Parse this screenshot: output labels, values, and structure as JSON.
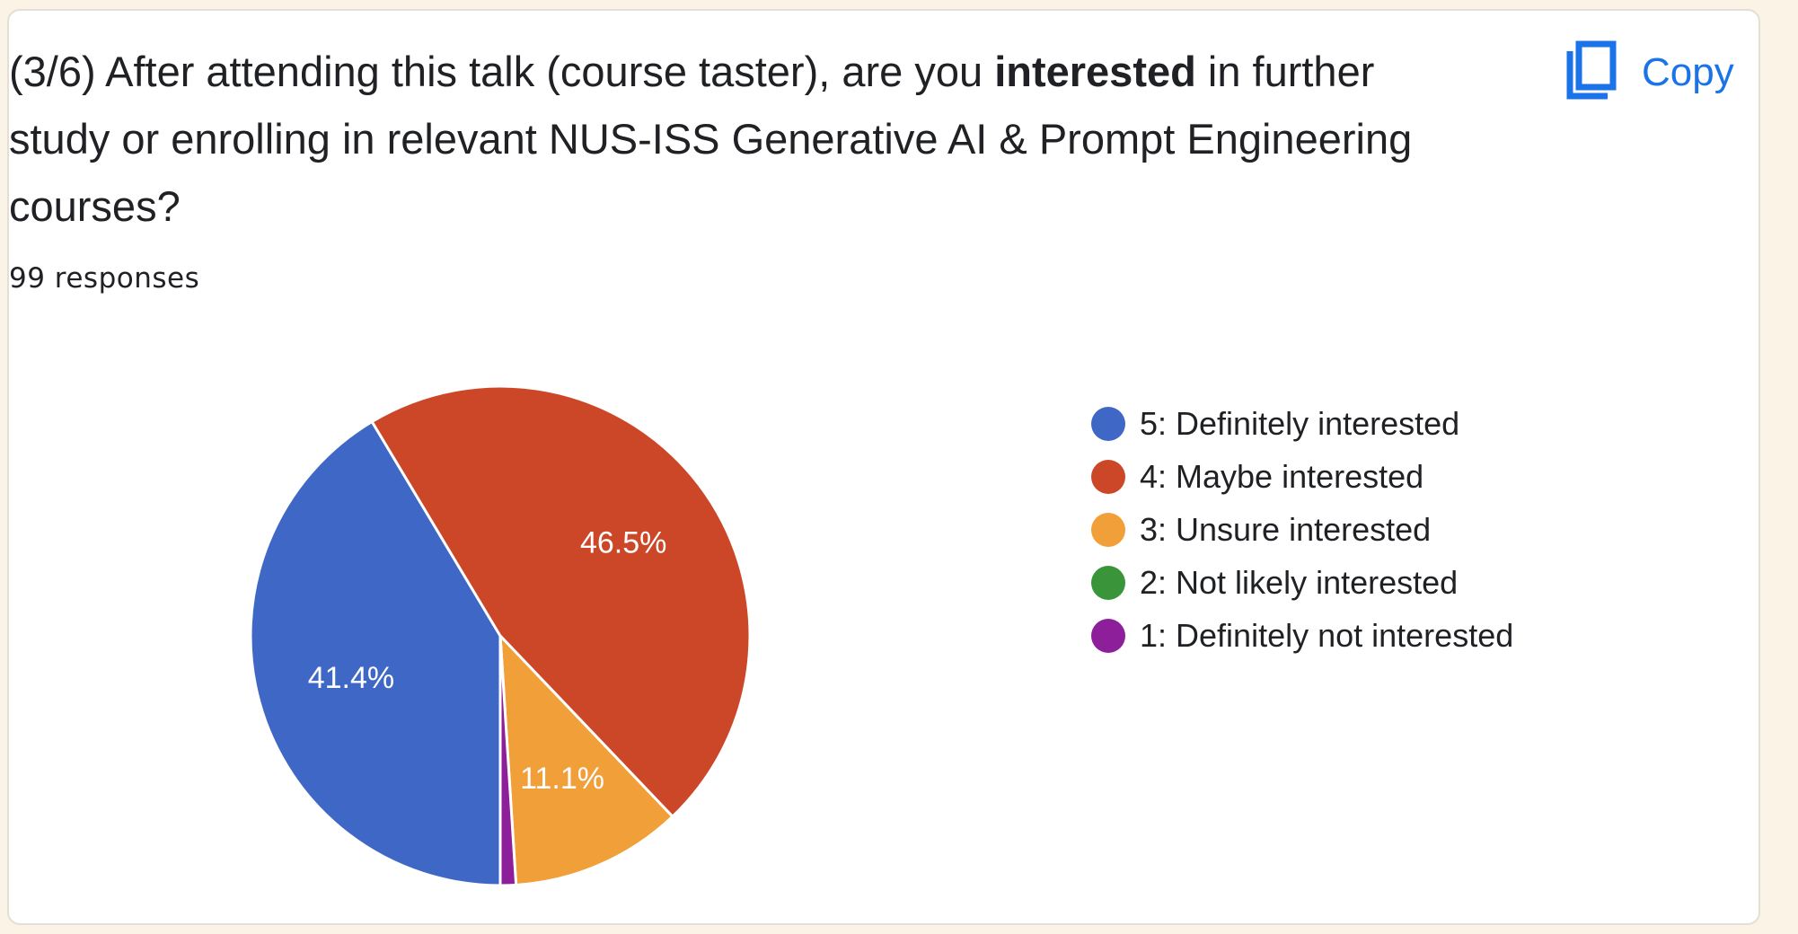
{
  "question": {
    "prefix": "(3/6) After attending this talk (course taster), are you ",
    "emphasis": "interested",
    "suffix": " in further study or enrolling in relevant NUS-ISS Generative AI & Prompt Engineering courses?"
  },
  "responses_text": "99 responses",
  "copy_button": {
    "label": "Copy",
    "icon": "copy-icon",
    "color": "#1a73e8"
  },
  "chart_data": {
    "type": "pie",
    "total_responses": 99,
    "start_angle_deg": 90,
    "slices": [
      {
        "label": "5: Definitely interested",
        "value": 41,
        "percent_label": "41.4%",
        "color": "#3f67c6"
      },
      {
        "label": "4: Maybe interested",
        "value": 46,
        "percent_label": "46.5%",
        "color": "#cc4628"
      },
      {
        "label": "3: Unsure interested",
        "value": 11,
        "percent_label": "11.1%",
        "color": "#f19f38"
      },
      {
        "label": "2: Not likely interested",
        "value": 0,
        "percent_label": "",
        "color": "#3a943a"
      },
      {
        "label": "1: Definitely not interested",
        "value": 1,
        "percent_label": "",
        "color": "#8e1f9b"
      }
    ]
  }
}
